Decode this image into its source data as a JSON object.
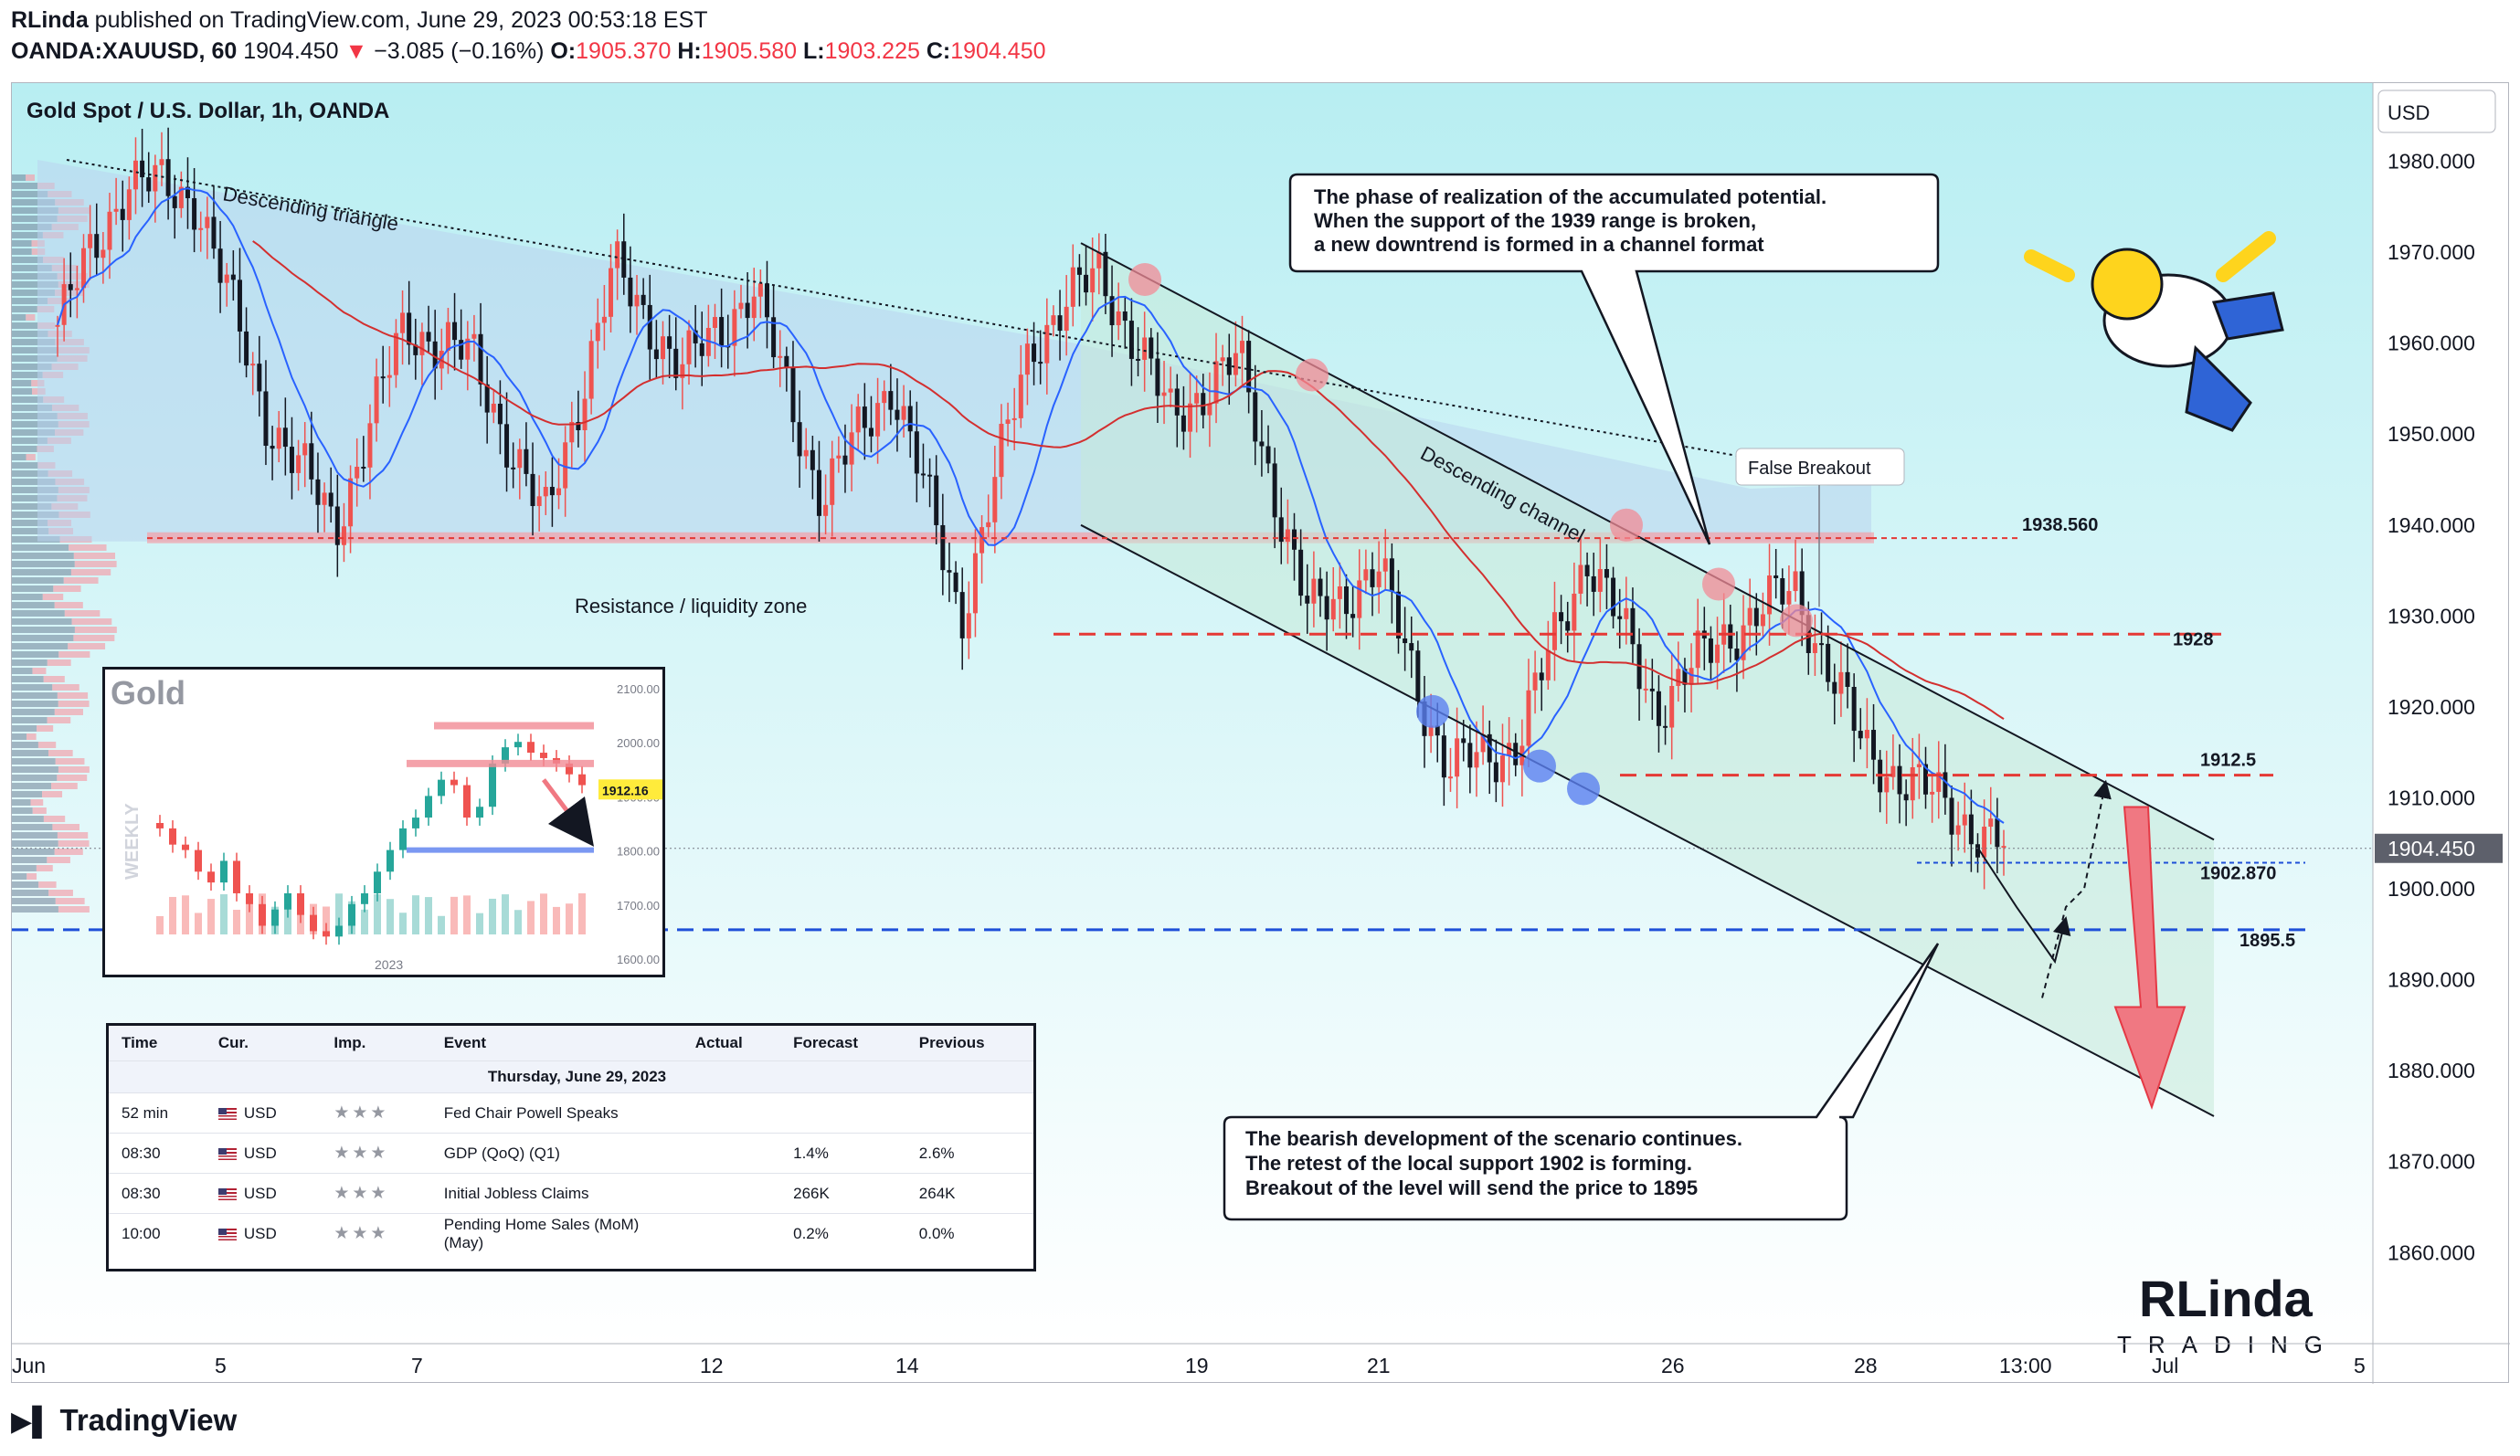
{
  "header": {
    "publisher": "RLinda",
    "published_text": "published on TradingView.com, June 29, 2023 00:53:18 EST",
    "symbol": "OANDA:XAUUSD, 60",
    "last": "1904.450",
    "change_arrow": "▼",
    "change": "−3.085 (−0.16%)",
    "o_label": "O:",
    "o": "1905.370",
    "h_label": "H:",
    "h": "1905.580",
    "l_label": "L:",
    "l": "1903.225",
    "c_label": "C:",
    "c": "1904.450"
  },
  "chart_title": "Gold Spot / U.S. Dollar, 1h, OANDA",
  "currency_button": "USD",
  "last_price_tag": "1904.450",
  "footer_brand": "TradingView",
  "annotations": {
    "descending_triangle": "Descending triangle",
    "descending_channel": "Descending channel",
    "resistance_zone": "Resistance / liquidity zone",
    "false_breakout": "False Breakout",
    "callout_top": [
      "The phase of realization of the accumulated potential.",
      "When the support of the 1939 range is broken,",
      "a new downtrend is formed in a channel format"
    ],
    "callout_bottom": [
      "The bearish development of the scenario continues.",
      "The retest of the local support 1902 is forming.",
      "Breakout of the level will send the price to 1895"
    ],
    "level_labels": [
      "1938.560",
      "1928",
      "1912.5",
      "1902.870",
      "1895.5"
    ]
  },
  "weekly_inset": {
    "title": "Gold",
    "side_label": "WEEKLY",
    "year_label": "2023",
    "price_ticks": [
      "2100.00",
      "2000.00",
      "1900.00",
      "1800.00",
      "1700.00",
      "1600.00"
    ],
    "price_tag": "1912.16"
  },
  "econ_calendar": {
    "headers": [
      "Time",
      "Cur.",
      "Imp.",
      "Event",
      "Actual",
      "Forecast",
      "Previous"
    ],
    "date_row": "Thursday, June 29, 2023",
    "rows": [
      {
        "time": "52 min",
        "cur": "USD",
        "event": "Fed Chair Powell Speaks",
        "actual": "",
        "forecast": "",
        "previous": ""
      },
      {
        "time": "08:30",
        "cur": "USD",
        "event": "GDP (QoQ) (Q1)",
        "actual": "",
        "forecast": "1.4%",
        "previous": "2.6%"
      },
      {
        "time": "08:30",
        "cur": "USD",
        "event": "Initial Jobless Claims",
        "actual": "",
        "forecast": "266K",
        "previous": "264K"
      },
      {
        "time": "10:00",
        "cur": "USD",
        "event": "Pending Home Sales (MoM) (May)",
        "actual": "",
        "forecast": "0.2%",
        "previous": "0.0%"
      }
    ]
  },
  "logo": {
    "line1": "RLinda",
    "line2": "TRADING"
  },
  "colors": {
    "bull": "#ef5350",
    "bear": "#131722",
    "ma_blue": "#2962ff",
    "ma_red": "#d32f2f",
    "level_red": "#e53935",
    "level_blue": "#1e4fd8",
    "bg_top": "#bfeef3",
    "bg_bottom": "#ffffff",
    "zone_fill": "#b9d3ee",
    "channel_fill": "#c7ead9"
  },
  "chart_data": {
    "type": "candlestick",
    "symbol": "XAUUSD",
    "timeframe": "1h",
    "x_ticks": [
      "Jun",
      "5",
      "7",
      "12",
      "14",
      "19",
      "21",
      "26",
      "28",
      "13:00",
      "Jul",
      "5"
    ],
    "y_ticks": [
      "1980.000",
      "1970.000",
      "1960.000",
      "1950.000",
      "1940.000",
      "1930.000",
      "1920.000",
      "1910.000",
      "1900.000",
      "1890.000",
      "1880.000",
      "1870.000",
      "1860.000"
    ],
    "ylim": [
      1853,
      1990
    ],
    "levels": [
      {
        "name": "range resistance",
        "value": 1938.56,
        "label": "1938.560"
      },
      {
        "name": "resistance",
        "value": 1928,
        "label": "1928"
      },
      {
        "name": "local resistance",
        "value": 1912.5,
        "label": "1912.5"
      },
      {
        "name": "local support",
        "value": 1902.87,
        "label": "1902.870"
      },
      {
        "name": "target",
        "value": 1895.5,
        "label": "1895.5"
      }
    ],
    "price_path": [
      [
        "Jun 1",
        1962
      ],
      [
        "Jun 2",
        1978
      ],
      [
        "Jun 3",
        1976
      ],
      [
        "Jun 5",
        1952
      ],
      [
        "Jun 6",
        1940
      ],
      [
        "Jun 7",
        1962
      ],
      [
        "Jun 8",
        1958
      ],
      [
        "Jun 9",
        1940
      ],
      [
        "Jun 12",
        1968
      ],
      [
        "Jun 13",
        1957
      ],
      [
        "Jun 14",
        1966
      ],
      [
        "Jun 15",
        1943
      ],
      [
        "Jun 16",
        1956
      ],
      [
        "Jun 16 pm",
        1930
      ],
      [
        "Jun 18",
        1960
      ],
      [
        "Jun 19",
        1968
      ],
      [
        "Jun 20",
        1952
      ],
      [
        "Jun 21",
        1958
      ],
      [
        "Jun 21 pm",
        1930
      ],
      [
        "Jun 22",
        1935
      ],
      [
        "Jun 23",
        1913
      ],
      [
        "Jun 24",
        1916
      ],
      [
        "Jun 26",
        1937
      ],
      [
        "Jun 26 pm",
        1920
      ],
      [
        "Jun 27",
        1928
      ],
      [
        "Jun 27 pm",
        1933
      ],
      [
        "Jun 28",
        1915
      ],
      [
        "Jun 28 pm",
        1910
      ],
      [
        "Jun 29",
        1904.45
      ]
    ],
    "projection": [
      [
        "Jun 29",
        1904.45
      ],
      [
        "Jun 29 am",
        1898
      ],
      [
        "Jun 29 mid",
        1892
      ],
      [
        "Jun 29 pm",
        1911
      ],
      [
        "Jun 30",
        1884
      ]
    ]
  }
}
